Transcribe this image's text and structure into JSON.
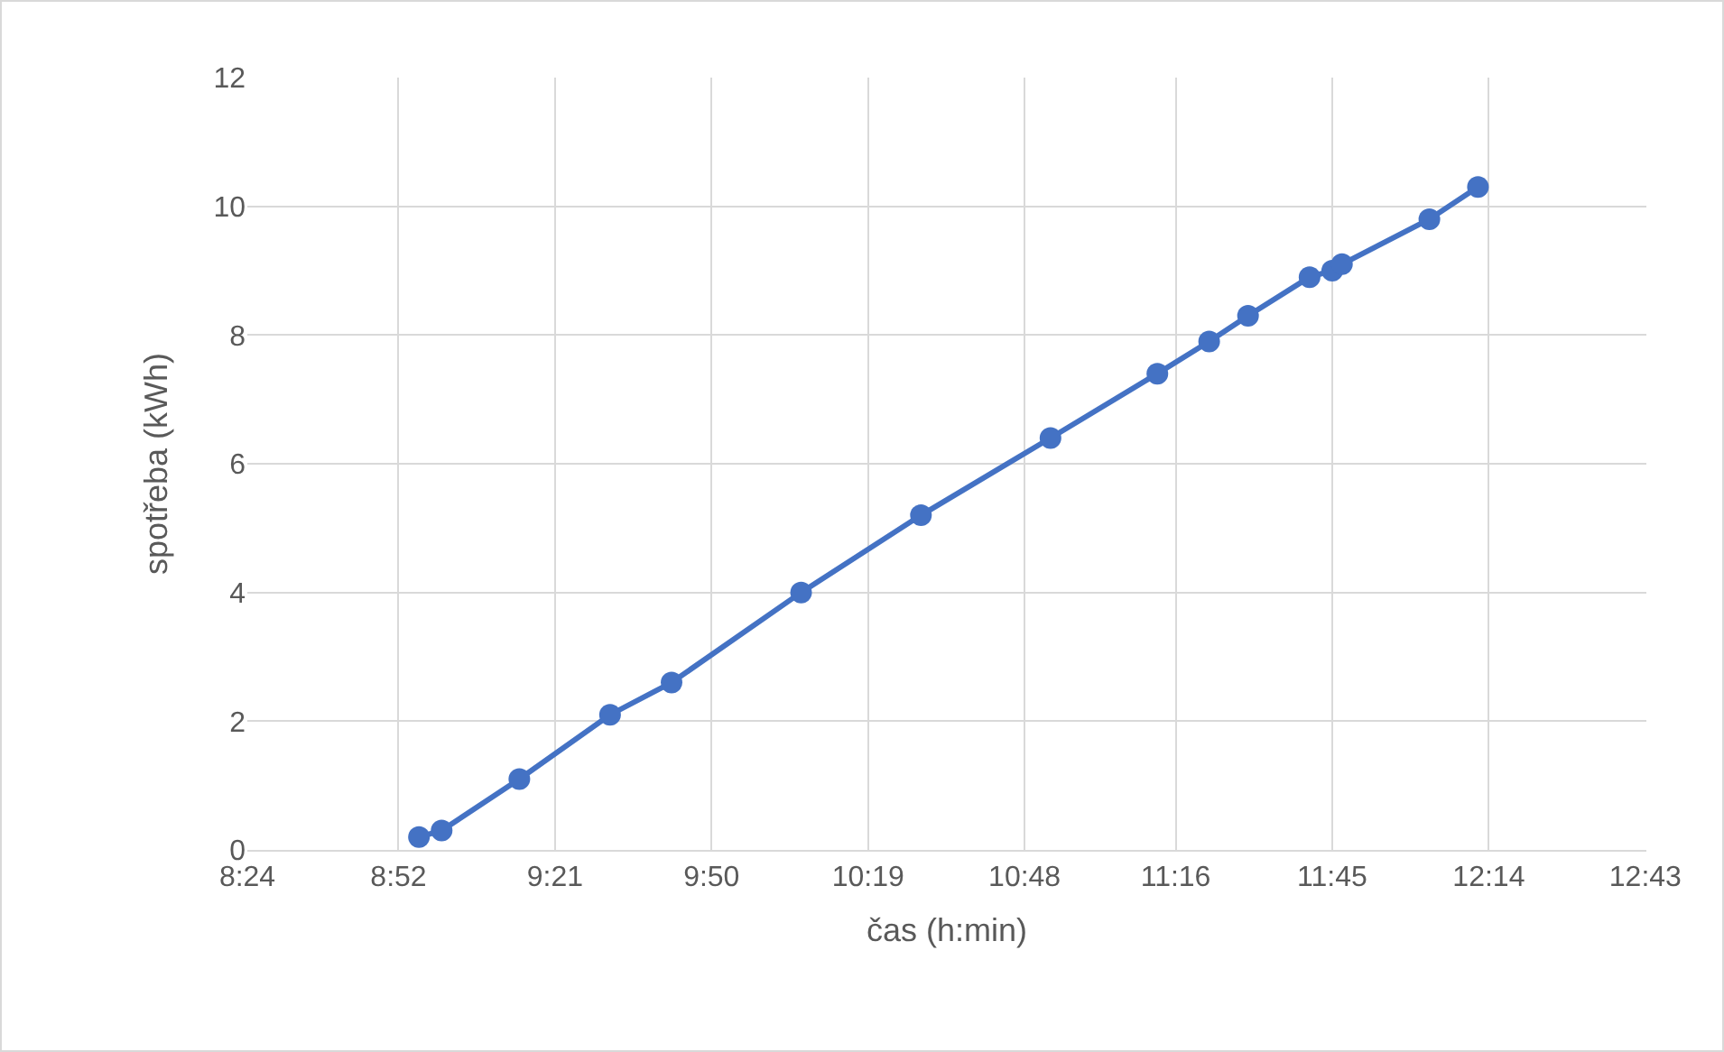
{
  "chart_data": {
    "type": "line",
    "xlabel": "čas (h:min)",
    "ylabel": "spotřeba (kWh)",
    "x": [
      8.93,
      9.0,
      9.24,
      9.52,
      9.71,
      10.11,
      10.48,
      10.88,
      11.21,
      11.37,
      11.49,
      11.68,
      11.75,
      11.78,
      12.05,
      12.2
    ],
    "series": [
      {
        "color": "#4472c4",
        "values": [
          0.2,
          0.3,
          1.1,
          2.1,
          2.6,
          4.0,
          5.2,
          6.4,
          7.4,
          7.9,
          8.3,
          8.9,
          9.0,
          9.1,
          9.8,
          10.3
        ]
      }
    ],
    "xlim": [
      8.4,
      12.72
    ],
    "xticks": [
      {
        "value": 8.4,
        "label": "8:24"
      },
      {
        "value": 8.8667,
        "label": "8:52"
      },
      {
        "value": 9.35,
        "label": "9:21"
      },
      {
        "value": 9.8333,
        "label": "9:50"
      },
      {
        "value": 10.3167,
        "label": "10:19"
      },
      {
        "value": 10.8,
        "label": "10:48"
      },
      {
        "value": 11.2667,
        "label": "11:16"
      },
      {
        "value": 11.75,
        "label": "11:45"
      },
      {
        "value": 12.2333,
        "label": "12:14"
      },
      {
        "value": 12.7167,
        "label": "12:43"
      }
    ],
    "ylim": [
      0,
      12
    ],
    "yticks": [
      0,
      2,
      4,
      6,
      8,
      10,
      12
    ],
    "grid": true,
    "marker": "circle",
    "line_style": "solid",
    "legend": false
  }
}
